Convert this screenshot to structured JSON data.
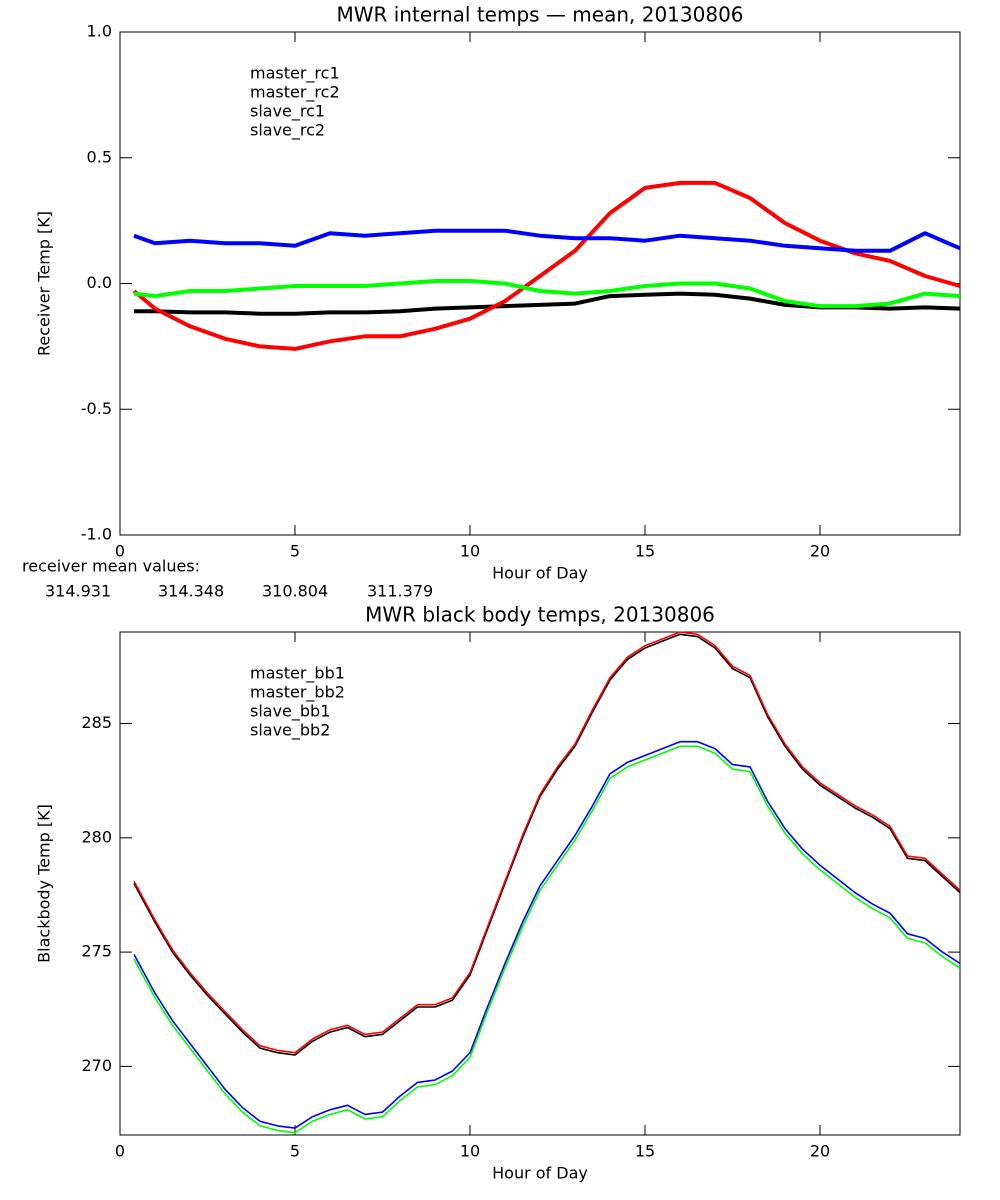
{
  "chart_data": [
    {
      "type": "line",
      "title": "MWR internal temps — mean, 20130806",
      "xlabel": "Hour of Day",
      "ylabel": "Receiver Temp [K]",
      "xlim": [
        0,
        24
      ],
      "ylim": [
        -1.0,
        1.0
      ],
      "xticks": [
        0,
        5,
        10,
        15,
        20
      ],
      "yticks": [
        {
          "value": -1.0,
          "label": "-1.0"
        },
        {
          "value": -0.5,
          "label": "-0.5"
        },
        {
          "value": 0.0,
          "label": "0.0"
        },
        {
          "value": 0.5,
          "label": "0.5"
        },
        {
          "value": 1.0,
          "label": "1.0"
        }
      ],
      "x": [
        0.4,
        1,
        2,
        3,
        4,
        5,
        6,
        7,
        8,
        9,
        10,
        11,
        12,
        13,
        14,
        15,
        16,
        17,
        18,
        19,
        20,
        21,
        22,
        23,
        24
      ],
      "series": [
        {
          "name": "master_rc1",
          "color": "#000000",
          "values": [
            -0.11,
            -0.11,
            -0.115,
            -0.115,
            -0.12,
            -0.12,
            -0.115,
            -0.115,
            -0.11,
            -0.1,
            -0.095,
            -0.09,
            -0.085,
            -0.08,
            -0.05,
            -0.045,
            -0.04,
            -0.045,
            -0.06,
            -0.085,
            -0.095,
            -0.095,
            -0.1,
            -0.095,
            -0.1
          ]
        },
        {
          "name": "master_rc2",
          "color": "#ff0000",
          "values": [
            -0.03,
            -0.1,
            -0.17,
            -0.22,
            -0.25,
            -0.26,
            -0.23,
            -0.21,
            -0.21,
            -0.18,
            -0.14,
            -0.07,
            0.03,
            0.13,
            0.28,
            0.38,
            0.4,
            0.4,
            0.34,
            0.24,
            0.17,
            0.12,
            0.09,
            0.03,
            -0.01
          ]
        },
        {
          "name": "slave_rc1",
          "color": "#0000ff",
          "values": [
            0.19,
            0.16,
            0.17,
            0.16,
            0.16,
            0.15,
            0.2,
            0.19,
            0.2,
            0.21,
            0.21,
            0.21,
            0.19,
            0.18,
            0.18,
            0.17,
            0.19,
            0.18,
            0.17,
            0.15,
            0.14,
            0.13,
            0.13,
            0.2,
            0.14
          ]
        },
        {
          "name": "slave_rc2",
          "color": "#00ff00",
          "values": [
            -0.04,
            -0.05,
            -0.03,
            -0.03,
            -0.02,
            -0.01,
            -0.01,
            -0.01,
            0.0,
            0.01,
            0.01,
            0.0,
            -0.03,
            -0.04,
            -0.03,
            -0.01,
            0.0,
            0.0,
            -0.02,
            -0.07,
            -0.09,
            -0.09,
            -0.08,
            -0.04,
            -0.05
          ]
        }
      ],
      "annotation": {
        "text": "receiver mean values:",
        "values": [
          314.931,
          314.348,
          310.804,
          311.379
        ]
      }
    },
    {
      "type": "line",
      "title": "MWR black body temps, 20130806",
      "xlabel": "Hour of Day",
      "ylabel": "Blackbody Temp [K]",
      "xlim": [
        0,
        24
      ],
      "ylim": [
        267,
        289
      ],
      "xticks": [
        0,
        5,
        10,
        15,
        20
      ],
      "yticks": [
        270,
        275,
        280,
        285
      ],
      "x": [
        0.4,
        1,
        1.5,
        2,
        2.5,
        3,
        3.5,
        4,
        4.5,
        5,
        5.5,
        6,
        6.5,
        7,
        7.5,
        8,
        8.5,
        9,
        9.5,
        10,
        10.5,
        11,
        11.5,
        12,
        12.5,
        13,
        13.5,
        14,
        14.5,
        15,
        15.5,
        16,
        16.5,
        17,
        17.5,
        18,
        18.5,
        19,
        19.5,
        20,
        20.5,
        21,
        21.5,
        22,
        22.5,
        23,
        23.5,
        24
      ],
      "series": [
        {
          "name": "master_bb1",
          "color": "#000000",
          "values": [
            278.0,
            276.3,
            275.0,
            274.0,
            273.1,
            272.3,
            271.5,
            270.8,
            270.6,
            270.5,
            271.1,
            271.5,
            271.7,
            271.3,
            271.4,
            272.0,
            272.6,
            272.6,
            272.9,
            274.0,
            276.0,
            278.0,
            280.0,
            281.8,
            283.0,
            284.0,
            285.5,
            286.9,
            287.8,
            288.3,
            288.6,
            288.9,
            288.8,
            288.3,
            287.4,
            287.0,
            285.3,
            284.0,
            283.0,
            282.3,
            281.8,
            281.3,
            280.9,
            280.4,
            279.1,
            279.0,
            278.3,
            277.6
          ]
        },
        {
          "name": "master_bb2",
          "color": "#ff0000",
          "values": [
            278.1,
            276.4,
            275.1,
            274.1,
            273.2,
            272.4,
            271.6,
            270.9,
            270.7,
            270.6,
            271.2,
            271.6,
            271.8,
            271.4,
            271.5,
            272.1,
            272.7,
            272.7,
            273.0,
            274.1,
            276.1,
            278.1,
            280.1,
            281.9,
            283.1,
            284.1,
            285.6,
            287.0,
            287.9,
            288.4,
            288.7,
            289.0,
            288.9,
            288.4,
            287.5,
            287.1,
            285.4,
            284.1,
            283.1,
            282.4,
            281.9,
            281.4,
            281.0,
            280.5,
            279.2,
            279.1,
            278.4,
            277.7
          ]
        },
        {
          "name": "slave_bb1",
          "color": "#0000ff",
          "values": [
            274.9,
            273.2,
            272.0,
            271.0,
            270.0,
            269.0,
            268.2,
            267.6,
            267.4,
            267.3,
            267.8,
            268.1,
            268.3,
            267.9,
            268.0,
            268.7,
            269.3,
            269.4,
            269.8,
            270.6,
            272.6,
            274.5,
            276.3,
            277.9,
            279.0,
            280.1,
            281.4,
            282.8,
            283.3,
            283.6,
            283.9,
            284.2,
            284.2,
            283.9,
            283.2,
            283.1,
            281.6,
            280.4,
            279.5,
            278.8,
            278.2,
            277.6,
            277.1,
            276.7,
            275.8,
            275.6,
            275.0,
            274.5
          ]
        },
        {
          "name": "slave_bb2",
          "color": "#00ff00",
          "values": [
            274.7,
            273.0,
            271.8,
            270.8,
            269.8,
            268.8,
            268.0,
            267.4,
            267.2,
            267.1,
            267.6,
            267.9,
            268.1,
            267.7,
            267.8,
            268.5,
            269.1,
            269.2,
            269.6,
            270.4,
            272.4,
            274.3,
            276.1,
            277.7,
            278.8,
            279.9,
            281.2,
            282.6,
            283.1,
            283.4,
            283.7,
            284.0,
            284.0,
            283.7,
            283.0,
            282.9,
            281.4,
            280.2,
            279.3,
            278.6,
            278.0,
            277.4,
            276.9,
            276.5,
            275.6,
            275.4,
            274.8,
            274.3
          ]
        }
      ]
    }
  ]
}
